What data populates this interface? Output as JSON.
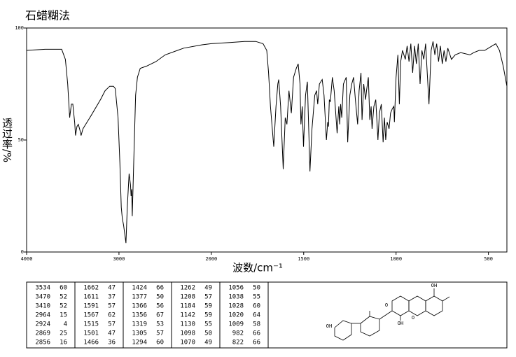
{
  "chart_data": {
    "type": "line",
    "title": "石蜡糊法",
    "x_label": "波数/cm⁻¹",
    "y_label": "透过率/%",
    "color": "#000000",
    "xlim": [
      4000,
      400
    ],
    "ylim": [
      0,
      100
    ],
    "xticks": [
      4000,
      3000,
      2000,
      1500,
      1000,
      500
    ],
    "yticks": [
      0,
      50,
      100
    ],
    "x": [
      4000,
      3800,
      3620,
      3580,
      3555,
      3534,
      3515,
      3500,
      3480,
      3470,
      3455,
      3440,
      3420,
      3410,
      3390,
      3360,
      3300,
      3200,
      3150,
      3100,
      3060,
      3040,
      3010,
      2990,
      2975,
      2964,
      2950,
      2924,
      2910,
      2890,
      2875,
      2869,
      2862,
      2856,
      2840,
      2820,
      2800,
      2770,
      2700,
      2600,
      2500,
      2300,
      2100,
      2000,
      1900,
      1820,
      1760,
      1720,
      1700,
      1690,
      1680,
      1670,
      1662,
      1650,
      1640,
      1635,
      1625,
      1611,
      1600,
      1591,
      1580,
      1567,
      1555,
      1540,
      1530,
      1520,
      1515,
      1508,
      1501,
      1490,
      1480,
      1466,
      1455,
      1440,
      1430,
      1424,
      1415,
      1400,
      1390,
      1377,
      1370,
      1366,
      1361,
      1356,
      1345,
      1335,
      1319,
      1310,
      1305,
      1300,
      1294,
      1285,
      1270,
      1262,
      1250,
      1240,
      1230,
      1220,
      1208,
      1200,
      1190,
      1184,
      1175,
      1165,
      1160,
      1150,
      1142,
      1135,
      1130,
      1120,
      1110,
      1098,
      1090,
      1080,
      1070,
      1063,
      1056,
      1048,
      1038,
      1030,
      1020,
      1012,
      1009,
      1000,
      990,
      982,
      975,
      965,
      950,
      940,
      930,
      920,
      910,
      900,
      890,
      880,
      870,
      860,
      850,
      840,
      822,
      810,
      800,
      790,
      780,
      770,
      760,
      750,
      740,
      730,
      720,
      700,
      680,
      650,
      600,
      580,
      550,
      520,
      480,
      460,
      440,
      420,
      400
    ],
    "values": [
      90,
      90.5,
      90.5,
      86,
      75,
      60,
      66,
      66,
      58,
      52,
      56,
      57,
      54,
      52,
      55,
      57,
      61,
      68,
      72,
      74,
      74,
      73,
      60,
      40,
      20,
      15,
      12,
      4,
      20,
      35,
      30,
      25,
      28,
      16,
      40,
      70,
      78,
      82,
      83,
      85,
      88,
      91,
      92.5,
      93,
      93.5,
      94,
      94,
      93,
      90,
      80,
      65,
      55,
      47,
      65,
      75,
      77,
      65,
      37,
      60,
      57,
      72,
      62,
      78,
      82,
      84,
      75,
      57,
      65,
      47,
      70,
      76,
      36,
      55,
      70,
      72,
      66,
      75,
      77,
      70,
      50,
      58,
      56,
      68,
      67,
      78,
      72,
      53,
      65,
      57,
      66,
      60,
      75,
      78,
      49,
      70,
      75,
      78,
      68,
      57,
      72,
      80,
      59,
      75,
      68,
      72,
      78,
      59,
      65,
      55,
      65,
      68,
      50,
      62,
      66,
      49,
      60,
      50,
      58,
      55,
      62,
      64,
      65,
      58,
      78,
      88,
      66,
      85,
      90,
      86,
      92,
      85,
      93,
      80,
      92,
      84,
      93,
      75,
      90,
      86,
      93,
      66,
      90,
      94,
      88,
      93,
      85,
      92,
      84,
      90,
      85,
      91,
      86,
      88,
      89,
      88,
      89,
      90,
      90,
      92,
      93,
      90,
      83,
      74
    ]
  },
  "peak_table": [
    [
      [
        "3534",
        "60"
      ],
      [
        "3470",
        "52"
      ],
      [
        "3410",
        "52"
      ],
      [
        "2964",
        "15"
      ],
      [
        "2924",
        "4"
      ],
      [
        "2869",
        "25"
      ],
      [
        "2856",
        "16"
      ]
    ],
    [
      [
        "1662",
        "47"
      ],
      [
        "1611",
        "37"
      ],
      [
        "1591",
        "57"
      ],
      [
        "1567",
        "62"
      ],
      [
        "1515",
        "57"
      ],
      [
        "1501",
        "47"
      ],
      [
        "1466",
        "36"
      ]
    ],
    [
      [
        "1424",
        "66"
      ],
      [
        "1377",
        "50"
      ],
      [
        "1366",
        "56"
      ],
      [
        "1356",
        "67"
      ],
      [
        "1319",
        "53"
      ],
      [
        "1305",
        "57"
      ],
      [
        "1294",
        "60"
      ]
    ],
    [
      [
        "1262",
        "49"
      ],
      [
        "1208",
        "57"
      ],
      [
        "1184",
        "59"
      ],
      [
        "1142",
        "59"
      ],
      [
        "1130",
        "55"
      ],
      [
        "1098",
        "50"
      ],
      [
        "1070",
        "49"
      ]
    ],
    [
      [
        "1056",
        "50"
      ],
      [
        "1038",
        "55"
      ],
      [
        "1028",
        "60"
      ],
      [
        "1020",
        "64"
      ],
      [
        "1009",
        "58"
      ],
      [
        "982",
        "66"
      ],
      [
        "822",
        "66"
      ]
    ]
  ],
  "structure_labels": [
    "OH",
    "O",
    "OH",
    "O",
    "OH"
  ]
}
